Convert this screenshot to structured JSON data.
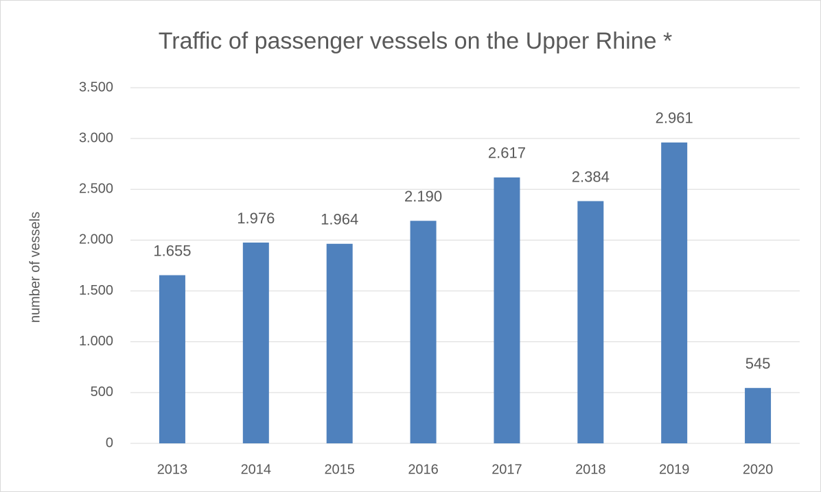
{
  "chart_data": {
    "type": "bar",
    "title": "Traffic of passenger vessels on the Upper Rhine *",
    "y_label": "number of vessels",
    "categories": [
      "2013",
      "2014",
      "2015",
      "2016",
      "2017",
      "2018",
      "2019",
      "2020"
    ],
    "values": [
      1655,
      1976,
      1964,
      2190,
      2617,
      2384,
      2961,
      545
    ],
    "value_labels": [
      "1.655",
      "1.976",
      "1.964",
      "2.190",
      "2.617",
      "2.384",
      "2.961",
      "545"
    ],
    "color": "#4f81bd",
    "ylim": [
      0,
      3500
    ],
    "yticks": [
      0,
      500,
      {
        "value": 1000,
        "label": "1.000"
      },
      {
        "value": 1500,
        "label": "1.500"
      },
      {
        "value": 2000,
        "label": "2.000"
      },
      {
        "value": 2500,
        "label": "2.500"
      },
      {
        "value": 3000,
        "label": "3.000"
      },
      {
        "value": 3500,
        "label": "3.500"
      }
    ],
    "grid": true
  }
}
